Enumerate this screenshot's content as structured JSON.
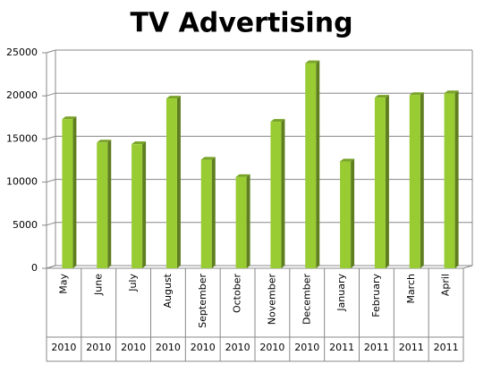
{
  "chart_data": {
    "type": "bar",
    "title": "TV Advertising",
    "categories": [
      "May",
      "June",
      "July",
      "August",
      "September",
      "October",
      "November",
      "December",
      "January",
      "February",
      "March",
      "April"
    ],
    "years": [
      "2010",
      "2010",
      "2010",
      "2010",
      "2010",
      "2010",
      "2010",
      "2010",
      "2011",
      "2011",
      "2011",
      "2011"
    ],
    "values": [
      17300,
      14600,
      14400,
      19700,
      12600,
      10600,
      17000,
      23800,
      12400,
      19800,
      20100,
      20300
    ],
    "color": "#99cc33",
    "ylim": [
      0,
      25000
    ],
    "yticks": [
      0,
      5000,
      10000,
      15000,
      20000,
      25000
    ],
    "grid": true
  }
}
